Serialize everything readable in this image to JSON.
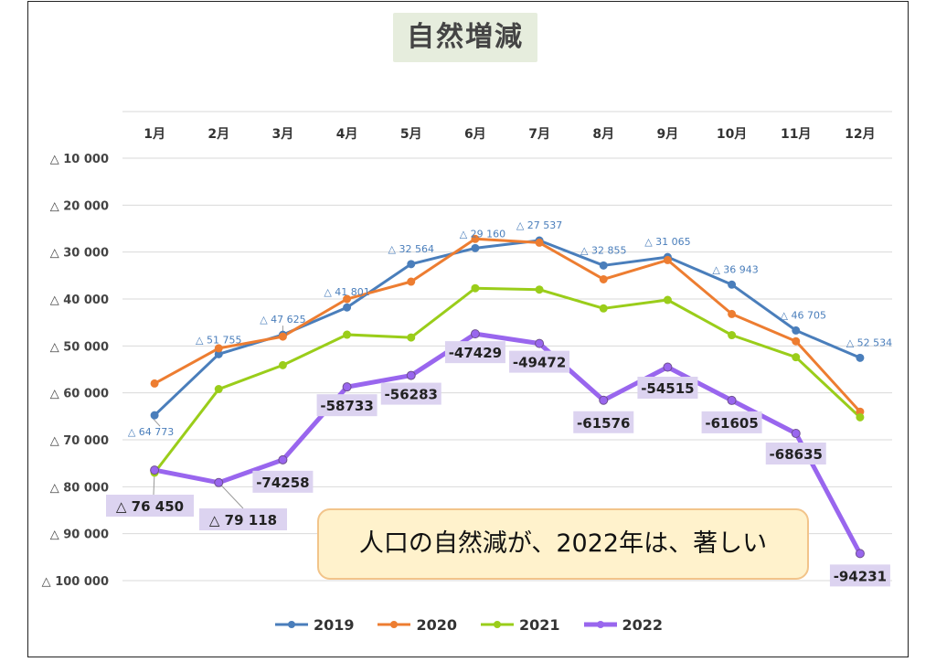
{
  "chart_data": {
    "type": "line",
    "title": "自然増減",
    "categories": [
      "1月",
      "2月",
      "3月",
      "4月",
      "5月",
      "6月",
      "7月",
      "8月",
      "9月",
      "10月",
      "11月",
      "12月"
    ],
    "y_axis": {
      "range": [
        -100000,
        -10000
      ],
      "ticks": [
        -10000,
        -20000,
        -30000,
        -40000,
        -50000,
        -60000,
        -70000,
        -80000,
        -90000,
        -100000
      ],
      "tick_labels": [
        "△ 10 000",
        "△ 20 000",
        "△ 30 000",
        "△ 40 000",
        "△ 50 000",
        "△ 60 000",
        "△ 70 000",
        "△ 80 000",
        "△ 90 000",
        "△ 100 000"
      ],
      "grid": true,
      "position": "left"
    },
    "x_axis": {
      "position": "top"
    },
    "series": [
      {
        "name": "2019",
        "color": "#4a7ebb",
        "values": [
          -64773,
          -51755,
          -47625,
          -41801,
          -32564,
          -29160,
          -27537,
          -32855,
          -31065,
          -36943,
          -46705,
          -52534
        ],
        "data_labels": [
          "△ 64 773",
          "△ 51 755",
          "△ 47 625",
          "△ 41 801",
          "△ 32 564",
          "△ 29 160",
          "△ 27 537",
          "△ 32 855",
          "△ 31 065",
          "△ 36 943",
          "△ 46 705",
          "△ 52 534"
        ]
      },
      {
        "name": "2020",
        "color": "#ed7d31",
        "values": [
          -58000,
          -50500,
          -48000,
          -40000,
          -36300,
          -27200,
          -28000,
          -35800,
          -31700,
          -43200,
          -49000,
          -64000
        ]
      },
      {
        "name": "2021",
        "color": "#9acd1a",
        "values": [
          -77000,
          -59200,
          -54100,
          -47600,
          -48200,
          -37700,
          -38000,
          -42000,
          -40200,
          -47700,
          -52400,
          -65200
        ]
      },
      {
        "name": "2022",
        "color": "#9966ee",
        "values": [
          -76450,
          -79118,
          -74258,
          -58733,
          -56283,
          -47429,
          -49472,
          -61576,
          -54515,
          -61605,
          -68635,
          -94231
        ],
        "data_labels": [
          "△ 76 450",
          "△ 79 118",
          "-74258",
          "-58733",
          "-56283",
          "-47429",
          "-49472",
          "-61576",
          "-54515",
          "-61605",
          "-68635",
          "-94231"
        ]
      }
    ],
    "legend": {
      "placement": "bottom"
    },
    "annotation": "人口の自然減が、2022年は、著しい"
  }
}
